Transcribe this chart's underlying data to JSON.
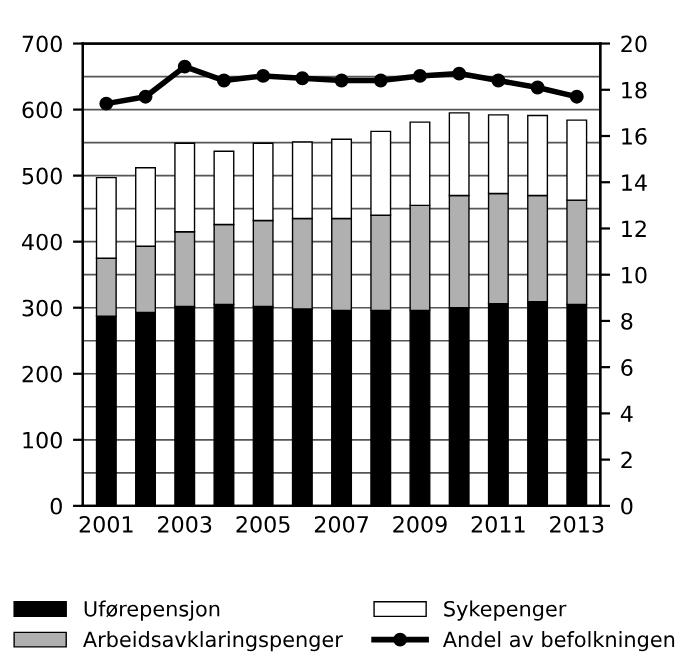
{
  "chart_data": {
    "type": "bar",
    "stacked": true,
    "categories": [
      "2001",
      null,
      "2003",
      null,
      "2005",
      null,
      "2007",
      null,
      "2009",
      null,
      "2011",
      null,
      "2013"
    ],
    "series": [
      {
        "name": "Uførepensjon",
        "color": "#000000",
        "values": [
          287,
          293,
          302,
          305,
          302,
          298,
          296,
          296,
          296,
          300,
          306,
          309,
          305
        ]
      },
      {
        "name": "Arbeidsavklaringspenger",
        "color": "#b0b0b0",
        "values": [
          88,
          100,
          113,
          121,
          130,
          137,
          139,
          144,
          159,
          170,
          167,
          161,
          158
        ]
      },
      {
        "name": "Sykepenger",
        "color": "#ffffff",
        "values": [
          122,
          119,
          134,
          111,
          117,
          116,
          120,
          127,
          126,
          125,
          119,
          121,
          121
        ]
      },
      {
        "name": "Andel av befolkningen",
        "type": "line",
        "axis": "y2",
        "color": "#000000",
        "marker": "circle",
        "values": [
          17.4,
          17.7,
          19.0,
          18.4,
          18.6,
          18.5,
          18.4,
          18.4,
          18.6,
          18.7,
          18.4,
          18.1,
          17.7
        ]
      }
    ],
    "ylim": [
      0,
      700
    ],
    "yticks": [
      0,
      100,
      200,
      300,
      400,
      500,
      600,
      700
    ],
    "y2lim": [
      0,
      20
    ],
    "y2ticks": [
      0,
      2,
      4,
      6,
      8,
      10,
      12,
      14,
      16,
      18,
      20
    ],
    "grid": "y",
    "legend": "bottom"
  }
}
